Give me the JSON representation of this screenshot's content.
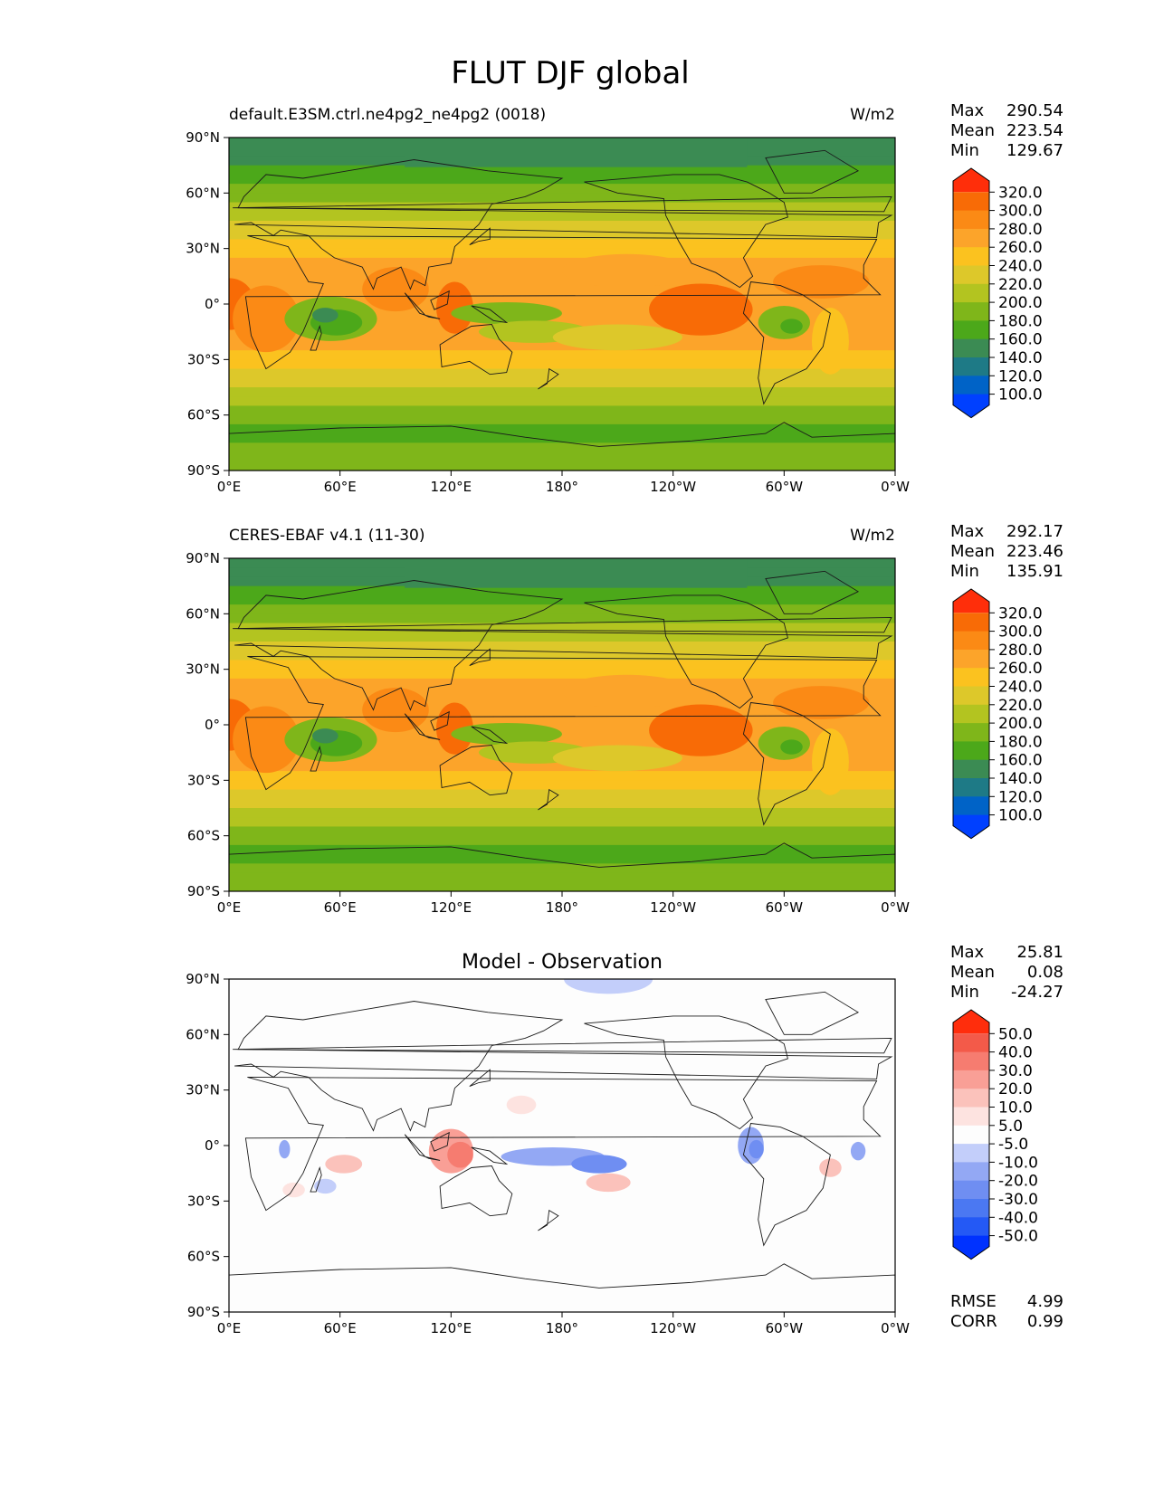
{
  "figure": {
    "title": "FLUT DJF global"
  },
  "colors": {
    "field": [
      "#0040ff",
      "#0063c7",
      "#1e7a86",
      "#3b8b53",
      "#4ca81a",
      "#7fb61a",
      "#b3c420",
      "#ddc82a",
      "#fbc21f",
      "#fca42a",
      "#fb8a15",
      "#f86b06",
      "#ff2e0a"
    ],
    "diff": [
      "#0032ff",
      "#2459f5",
      "#4b78f2",
      "#6f8ef2",
      "#93a8f4",
      "#c3cefa",
      "#fdfdfd",
      "#fde3e0",
      "#fbc2bb",
      "#f99f96",
      "#f67c70",
      "#f35a49",
      "#ff2d0c"
    ]
  },
  "axes": {
    "lat_ticks": [
      "90°N",
      "60°N",
      "30°N",
      "0°",
      "30°S",
      "60°S",
      "90°S"
    ],
    "lon_ticks": [
      "0°E",
      "60°E",
      "120°E",
      "180°",
      "120°W",
      "60°W",
      "0°W"
    ]
  },
  "panels": [
    {
      "left_title": "default.E3SM.ctrl.ne4pg2_ne4pg2 (0018)",
      "center_title": "",
      "units": "W/m2",
      "kind": "field",
      "stats": [
        {
          "label": "Max",
          "value": "290.54"
        },
        {
          "label": "Mean",
          "value": "223.54"
        },
        {
          "label": "Min",
          "value": "129.67"
        }
      ],
      "colorbar_ticks": [
        "320.0",
        "300.0",
        "280.0",
        "260.0",
        "240.0",
        "220.0",
        "200.0",
        "180.0",
        "160.0",
        "140.0",
        "120.0",
        "100.0"
      ]
    },
    {
      "left_title": "CERES-EBAF v4.1 (11-30)",
      "center_title": "",
      "units": "W/m2",
      "kind": "field",
      "stats": [
        {
          "label": "Max",
          "value": "292.17"
        },
        {
          "label": "Mean",
          "value": "223.46"
        },
        {
          "label": "Min",
          "value": "135.91"
        }
      ],
      "colorbar_ticks": [
        "320.0",
        "300.0",
        "280.0",
        "260.0",
        "240.0",
        "220.0",
        "200.0",
        "180.0",
        "160.0",
        "140.0",
        "120.0",
        "100.0"
      ]
    },
    {
      "left_title": "",
      "center_title": "Model - Observation",
      "units": "",
      "kind": "diff",
      "stats": [
        {
          "label": "Max",
          "value": "25.81"
        },
        {
          "label": "Mean",
          "value": "0.08"
        },
        {
          "label": "Min",
          "value": "-24.27"
        }
      ],
      "colorbar_ticks": [
        "50.0",
        "40.0",
        "30.0",
        "20.0",
        "10.0",
        "5.0",
        "-5.0",
        "-10.0",
        "-20.0",
        "-30.0",
        "-40.0",
        "-50.0"
      ],
      "metrics": [
        {
          "label": "RMSE",
          "value": "4.99"
        },
        {
          "label": "CORR",
          "value": "0.99"
        }
      ]
    }
  ]
}
